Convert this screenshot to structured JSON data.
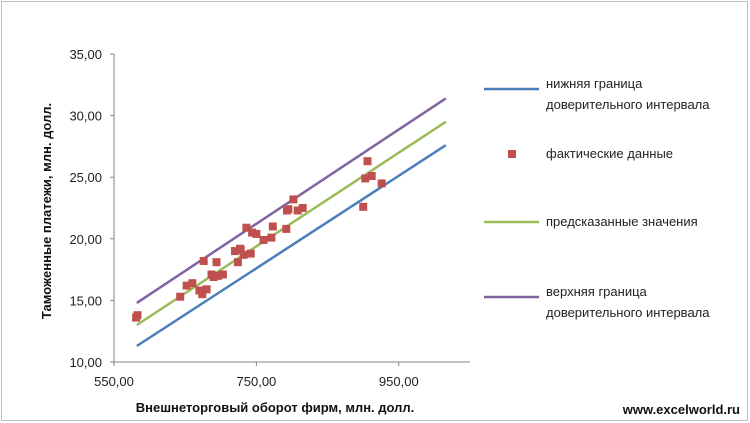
{
  "chart_data": {
    "type": "scatter",
    "xlabel": "Внешнеторговый оборот фирм, млн. долл.",
    "ylabel": "Таможенные платежи, млн. долл.",
    "xlim": [
      550,
      1050
    ],
    "ylim": [
      10,
      35
    ],
    "x_ticks": [
      "550,00",
      "750,00",
      "950,00"
    ],
    "y_ticks": [
      "10,00",
      "15,00",
      "20,00",
      "25,00",
      "30,00",
      "35,00"
    ],
    "grid": false,
    "legend_position": "right",
    "series": [
      {
        "name": "нижняя граница доверительного интервала",
        "kind": "line",
        "color": "#4a7ebb",
        "x": [
          582,
          1016
        ],
        "y": [
          11.3,
          27.6
        ]
      },
      {
        "name": "фактические данные",
        "kind": "scatter",
        "color": "#c0504d",
        "x": [
          581,
          583,
          643,
          652,
          660,
          670,
          674,
          676,
          680,
          687,
          690,
          694,
          696,
          703,
          720,
          724,
          727,
          728,
          732,
          736,
          742,
          744,
          750,
          760,
          771,
          773,
          792,
          793,
          795,
          802,
          808,
          815,
          900,
          903,
          906,
          912,
          926
        ],
        "y": [
          13.6,
          13.8,
          15.3,
          16.2,
          16.4,
          15.8,
          15.5,
          18.2,
          15.9,
          17.1,
          16.9,
          18.1,
          17.0,
          17.1,
          19.0,
          18.1,
          19.2,
          19.1,
          18.7,
          20.9,
          18.8,
          20.5,
          20.4,
          19.9,
          20.1,
          21.0,
          20.8,
          22.3,
          22.4,
          23.2,
          22.3,
          22.5,
          22.6,
          24.9,
          26.3,
          25.1,
          24.5
        ]
      },
      {
        "name": "предсказанные значения",
        "kind": "line",
        "color": "#9bbb59",
        "x": [
          582,
          1016
        ],
        "y": [
          13.0,
          29.5
        ]
      },
      {
        "name": "верхняя граница доверительного интервала",
        "kind": "line",
        "color": "#8064a2",
        "x": [
          582,
          1016
        ],
        "y": [
          14.8,
          31.4
        ]
      }
    ]
  },
  "legend": [
    {
      "lines": [
        "нижняя граница",
        "доверительного интервала"
      ],
      "marker": "line",
      "color": "#4a7ebb"
    },
    {
      "lines": [
        "фактические данные"
      ],
      "marker": "square",
      "color": "#c0504d"
    },
    {
      "lines": [
        "предсказанные значения"
      ],
      "marker": "line",
      "color": "#9bbb59"
    },
    {
      "lines": [
        "верхняя граница",
        "доверительного интервала"
      ],
      "marker": "line",
      "color": "#8064a2"
    }
  ],
  "watermark": "www.excelworld.ru"
}
